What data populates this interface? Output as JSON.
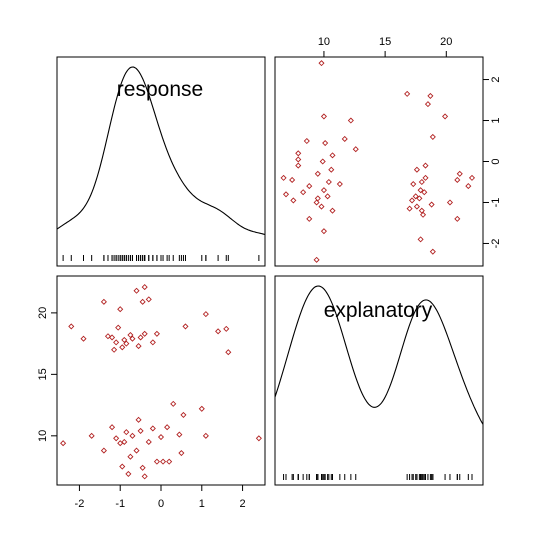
{
  "chart_data": {
    "type": "scatter",
    "variables": [
      "response",
      "explanatory"
    ],
    "response_range": [
      -2.55,
      2.55
    ],
    "explanatory_range": [
      6.0,
      23.0
    ],
    "response_ticks": [
      -2,
      -1,
      0,
      1,
      2
    ],
    "explanatory_ticks": [
      10,
      15,
      20
    ],
    "response_tick_labels": [
      "-2",
      "-1",
      "0",
      "1",
      "2"
    ],
    "explanatory_tick_labels": [
      "10",
      "15",
      "20"
    ],
    "marker_color": "#b22222",
    "points": [
      {
        "response": -2.4,
        "explanatory": 9.4
      },
      {
        "response": -1.7,
        "explanatory": 10.0
      },
      {
        "response": -1.4,
        "explanatory": 8.8
      },
      {
        "response": -1.2,
        "explanatory": 10.7
      },
      {
        "response": -1.1,
        "explanatory": 9.8
      },
      {
        "response": -1.0,
        "explanatory": 9.4
      },
      {
        "response": -0.95,
        "explanatory": 7.5
      },
      {
        "response": -0.9,
        "explanatory": 9.5
      },
      {
        "response": -0.85,
        "explanatory": 10.3
      },
      {
        "response": -0.8,
        "explanatory": 6.9
      },
      {
        "response": -0.75,
        "explanatory": 8.3
      },
      {
        "response": -0.7,
        "explanatory": 10.0
      },
      {
        "response": -0.6,
        "explanatory": 8.8
      },
      {
        "response": -0.55,
        "explanatory": 11.3
      },
      {
        "response": -0.5,
        "explanatory": 10.4
      },
      {
        "response": -0.45,
        "explanatory": 7.4
      },
      {
        "response": -0.4,
        "explanatory": 6.7
      },
      {
        "response": -0.3,
        "explanatory": 9.5
      },
      {
        "response": -0.2,
        "explanatory": 10.6
      },
      {
        "response": -0.1,
        "explanatory": 7.9
      },
      {
        "response": 0.0,
        "explanatory": 9.9
      },
      {
        "response": 0.05,
        "explanatory": 7.9
      },
      {
        "response": 0.15,
        "explanatory": 10.7
      },
      {
        "response": 0.2,
        "explanatory": 7.9
      },
      {
        "response": 0.3,
        "explanatory": 12.6
      },
      {
        "response": 0.45,
        "explanatory": 10.1
      },
      {
        "response": 0.5,
        "explanatory": 8.6
      },
      {
        "response": 0.55,
        "explanatory": 11.7
      },
      {
        "response": 1.0,
        "explanatory": 12.2
      },
      {
        "response": 1.1,
        "explanatory": 10.0
      },
      {
        "response": 2.4,
        "explanatory": 9.8
      },
      {
        "response": -2.2,
        "explanatory": 18.9
      },
      {
        "response": -1.9,
        "explanatory": 17.9
      },
      {
        "response": -1.4,
        "explanatory": 20.9
      },
      {
        "response": -1.3,
        "explanatory": 18.1
      },
      {
        "response": -1.2,
        "explanatory": 18.0
      },
      {
        "response": -1.15,
        "explanatory": 17.0
      },
      {
        "response": -1.1,
        "explanatory": 17.6
      },
      {
        "response": -1.05,
        "explanatory": 18.8
      },
      {
        "response": -1.0,
        "explanatory": 20.3
      },
      {
        "response": -0.95,
        "explanatory": 17.2
      },
      {
        "response": -0.9,
        "explanatory": 17.8
      },
      {
        "response": -0.85,
        "explanatory": 17.5
      },
      {
        "response": -0.75,
        "explanatory": 18.2
      },
      {
        "response": -0.7,
        "explanatory": 17.9
      },
      {
        "response": -0.6,
        "explanatory": 21.8
      },
      {
        "response": -0.55,
        "explanatory": 17.3
      },
      {
        "response": -0.5,
        "explanatory": 18.0
      },
      {
        "response": -0.45,
        "explanatory": 20.9
      },
      {
        "response": -0.4,
        "explanatory": 18.3
      },
      {
        "response": -0.4,
        "explanatory": 22.1
      },
      {
        "response": -0.3,
        "explanatory": 21.1
      },
      {
        "response": -0.2,
        "explanatory": 17.6
      },
      {
        "response": -0.1,
        "explanatory": 18.3
      },
      {
        "response": 0.6,
        "explanatory": 18.9
      },
      {
        "response": 1.1,
        "explanatory": 19.9
      },
      {
        "response": 1.4,
        "explanatory": 18.5
      },
      {
        "response": 1.6,
        "explanatory": 18.7
      },
      {
        "response": 1.65,
        "explanatory": 16.8
      }
    ]
  }
}
